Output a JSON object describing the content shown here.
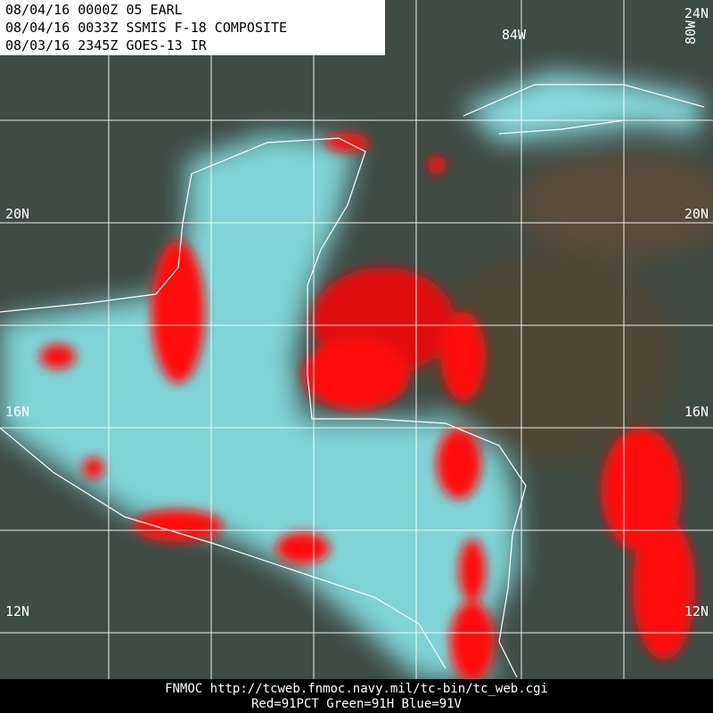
{
  "header": {
    "lines": [
      "08/04/16 0000Z  05 EARL",
      "08/04/16 0033Z  SSMIS F-18 COMPOSITE",
      "08/03/16 2345Z  GOES-13 IR"
    ]
  },
  "grid": {
    "lat_labels_left": [
      "20N",
      "16N",
      "12N"
    ],
    "lat_labels_right": [
      "24N",
      "20N",
      "16N",
      "12N"
    ],
    "lon_labels": [
      "84W",
      "80W"
    ]
  },
  "footer": {
    "lines": [
      "FNMOC  http://tcweb.fnmoc.navy.mil/tc-bin/tc_web.cgi",
      "Red=91PCT  Green=91H  Blue=91V"
    ]
  }
}
